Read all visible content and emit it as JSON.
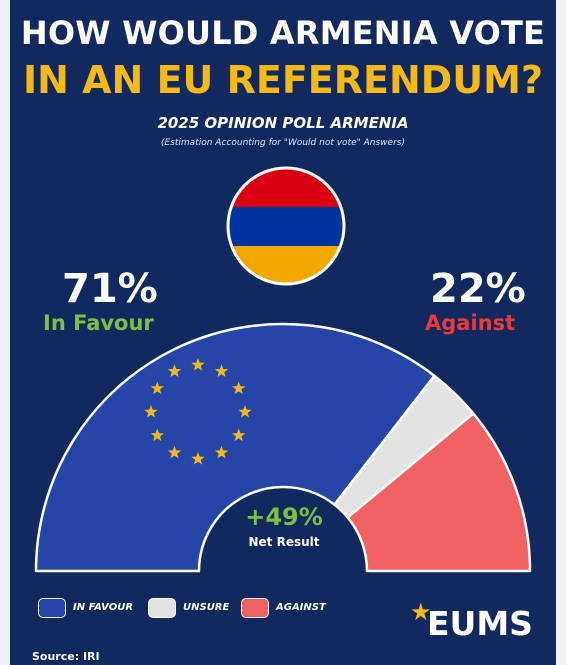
{
  "header": {
    "title_line1": "HOW WOULD ARMENIA VOTE",
    "title_line2": "IN AN EU REFERENDUM?",
    "subtitle": "2025 OPINION POLL ARMENIA",
    "note": "(Estimation Accounting for \"Would not vote\" Answers)"
  },
  "flag": {
    "name": "armenia-flag",
    "colors": [
      "#d90012",
      "#0033a0",
      "#f2a800"
    ]
  },
  "summary": {
    "favour_pct": "71%",
    "favour_label": "In Favour",
    "against_pct": "22%",
    "against_label": "Against",
    "net_value": "+49%",
    "net_label": "Net Result"
  },
  "chart_data": {
    "type": "pie",
    "variant": "semicircle parliament",
    "categories": [
      "IN FAVOUR",
      "UNSURE",
      "AGAINST"
    ],
    "values": [
      71,
      7,
      22
    ],
    "colors": [
      "#2545a8",
      "#e2e2e2",
      "#f06262"
    ],
    "emblem": "eu-stars-circle"
  },
  "legend": [
    {
      "label": "IN FAVOUR",
      "color": "#2545a8"
    },
    {
      "label": "UNSURE",
      "color": "#e2e2e2"
    },
    {
      "label": "AGAINST",
      "color": "#f06262"
    }
  ],
  "brand": {
    "logo_text": "EUMS",
    "logo_icon": "star-icon",
    "accent": "#f5b916"
  },
  "footer": {
    "source": "Source: IRI"
  }
}
